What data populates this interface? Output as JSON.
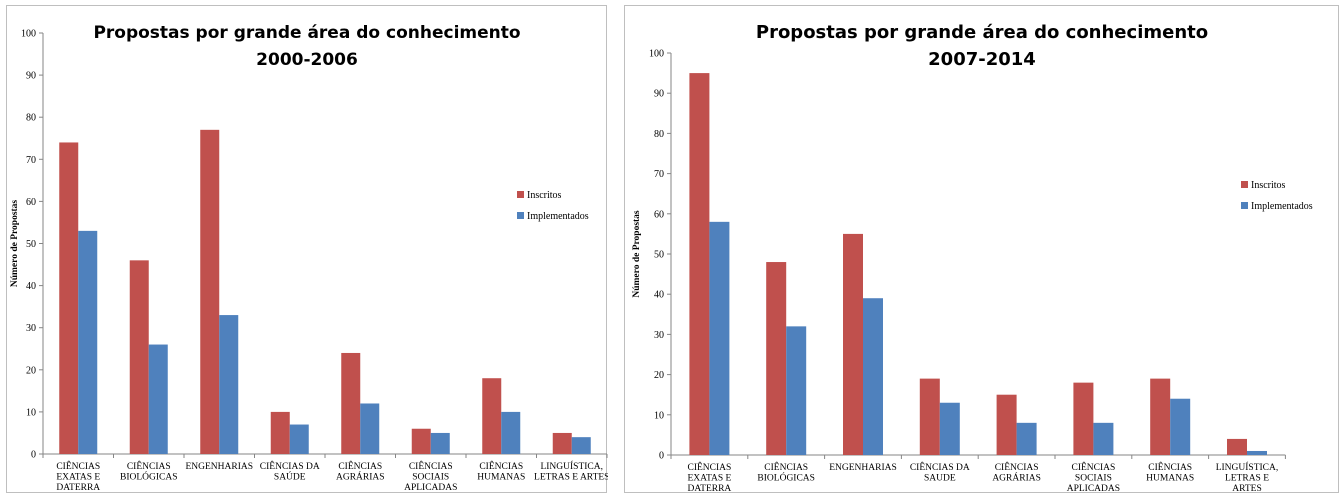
{
  "chart_data": [
    {
      "type": "bar",
      "title": "Propostas por grande área do conhecimento",
      "subtitle": "2000-2006",
      "xlabel": "",
      "ylabel": "Número de Propostas",
      "ylim": [
        0,
        100
      ],
      "yticks": [
        0,
        10,
        20,
        30,
        40,
        50,
        60,
        70,
        80,
        90,
        100
      ],
      "grid": false,
      "legend_position": "right",
      "categories": [
        "CIÊNCIAS EXATAS E DATERRA",
        "CIÊNCIAS BIOLÓGICAS",
        "ENGENHARIAS",
        "CIÊNCIAS DA SAÚDE",
        "CIÊNCIAS AGRÁRIAS",
        "CIÊNCIAS SOCIAIS APLICADAS",
        "CIÊNCIAS HUMANAS",
        "LINGUÍSTICA, LETRAS E ARTES"
      ],
      "category_lines": [
        [
          "CIÊNCIAS",
          "EXATAS E",
          "DATERRA"
        ],
        [
          "CIÊNCIAS",
          "BIOLÓGICAS"
        ],
        [
          "ENGENHARIAS"
        ],
        [
          "CIÊNCIAS DA",
          "SAÚDE"
        ],
        [
          "CIÊNCIAS",
          "AGRÁRIAS"
        ],
        [
          "CIÊNCIAS",
          "SOCIAIS",
          "APLICADAS"
        ],
        [
          "CIÊNCIAS",
          "HUMANAS"
        ],
        [
          "LINGUÍSTICA,",
          "LETRAS E ARTES"
        ]
      ],
      "series": [
        {
          "name": "Inscritos",
          "color": "#c0504d",
          "values": [
            74,
            46,
            77,
            10,
            24,
            6,
            18,
            5
          ]
        },
        {
          "name": "Implementados",
          "color": "#4f81bd",
          "values": [
            53,
            26,
            33,
            7,
            12,
            5,
            10,
            4
          ]
        }
      ]
    },
    {
      "type": "bar",
      "title": "Propostas por grande área do conhecimento",
      "subtitle": "2007-2014",
      "xlabel": "",
      "ylabel": "Número de Propostas",
      "ylim": [
        0,
        100
      ],
      "yticks": [
        0,
        10,
        20,
        30,
        40,
        50,
        60,
        70,
        80,
        90,
        100
      ],
      "grid": false,
      "legend_position": "right",
      "categories": [
        "CIÊNCIAS EXATAS E DATERRA",
        "CIÊNCIAS BIOLÓGICAS",
        "ENGENHARIAS",
        "CIÊNCIAS DA SAUDE",
        "CIÊNCIAS AGRÁRIAS",
        "CIÊNCIAS SOCIAIS APLICADAS",
        "CIÊNCIAS HUMANAS",
        "LINGUÍSTICA, LETRAS E ARTES"
      ],
      "category_lines": [
        [
          "CIÊNCIAS",
          "EXATAS E",
          "DATERRA"
        ],
        [
          "CIÊNCIAS",
          "BIOLÓGICAS"
        ],
        [
          "ENGENHARIAS"
        ],
        [
          "CIÊNCIAS DA",
          "SAUDE"
        ],
        [
          "CIÊNCIAS",
          "AGRÁRIAS"
        ],
        [
          "CIÊNCIAS",
          "SOCIAIS",
          "APLICADAS"
        ],
        [
          "CIÊNCIAS",
          "HUMANAS"
        ],
        [
          "LINGUÍSTICA,",
          "LETRAS E",
          "ARTES"
        ]
      ],
      "series": [
        {
          "name": "Inscritos",
          "color": "#c0504d",
          "values": [
            95,
            48,
            55,
            19,
            15,
            18,
            19,
            4
          ]
        },
        {
          "name": "Implementados",
          "color": "#4f81bd",
          "values": [
            58,
            32,
            39,
            13,
            8,
            8,
            14,
            1
          ]
        }
      ]
    }
  ]
}
